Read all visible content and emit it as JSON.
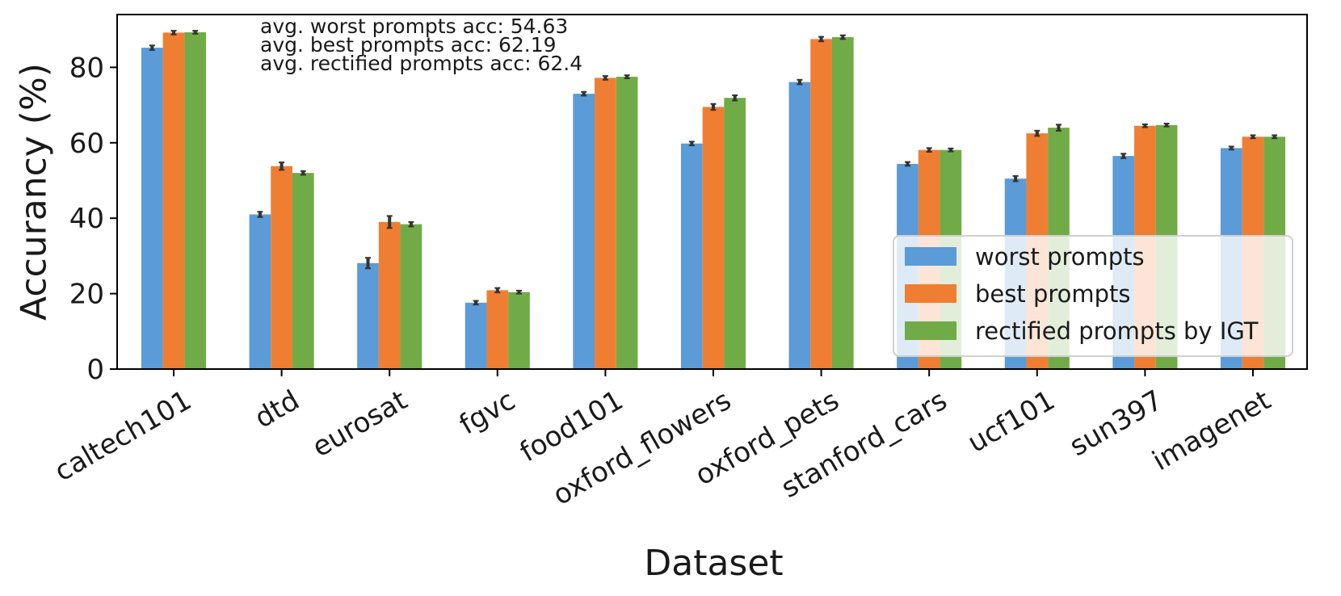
{
  "chart_data": {
    "type": "bar",
    "xlabel": "Dataset",
    "ylabel": "Accurancy (%)",
    "ylim": [
      0,
      94
    ],
    "yticks": [
      0,
      20,
      40,
      60,
      80
    ],
    "grid": false,
    "legend_position": "lower-right",
    "categories": [
      "caltech101",
      "dtd",
      "eurosat",
      "fgvc",
      "food101",
      "oxford_flowers",
      "oxford_pets",
      "stanford_cars",
      "ucf101",
      "sun397",
      "imagenet"
    ],
    "series": [
      {
        "name": "worst prompts",
        "color": "#5a9bd8",
        "values": [
          85.2,
          41.0,
          28.1,
          17.6,
          73.0,
          59.8,
          76.1,
          54.4,
          50.5,
          56.5,
          58.6
        ],
        "errors": [
          0.6,
          0.7,
          1.4,
          0.5,
          0.5,
          0.5,
          0.6,
          0.5,
          0.7,
          0.6,
          0.4
        ]
      },
      {
        "name": "best prompts",
        "color": "#ef7e32",
        "values": [
          89.2,
          53.8,
          39.0,
          20.9,
          77.2,
          69.5,
          87.5,
          58.1,
          62.5,
          64.5,
          61.6
        ],
        "errors": [
          0.5,
          1.0,
          1.6,
          0.6,
          0.5,
          0.8,
          0.6,
          0.5,
          0.7,
          0.4,
          0.4
        ]
      },
      {
        "name": "rectified prompts by IGT",
        "color": "#71ab47",
        "values": [
          89.3,
          52.0,
          38.4,
          20.4,
          77.5,
          71.9,
          88.0,
          58.1,
          64.0,
          64.7,
          61.6
        ],
        "errors": [
          0.4,
          0.5,
          0.6,
          0.4,
          0.4,
          0.7,
          0.5,
          0.4,
          0.8,
          0.4,
          0.4
        ]
      }
    ],
    "annotations": [
      "avg. worst prompts acc: 54.63",
      "avg. best prompts acc: 62.19",
      "avg. rectified prompts acc: 62.4"
    ]
  }
}
